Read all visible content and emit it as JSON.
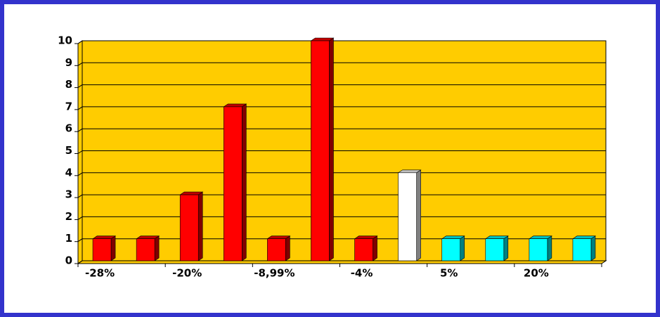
{
  "chart_data": {
    "type": "bar",
    "categories": [
      "-28%",
      null,
      "-20%",
      null,
      "-8,99%",
      null,
      "-4%",
      null,
      "5%",
      null,
      "20%",
      null
    ],
    "values": [
      1,
      1,
      3,
      7,
      1,
      10,
      1,
      4,
      1,
      1,
      1,
      1
    ],
    "colors": [
      "#ff0000",
      "#ff0000",
      "#ff0000",
      "#ff0000",
      "#ff0000",
      "#ff0000",
      "#ff0000",
      "#ffffff",
      "#00ffff",
      "#00ffff",
      "#00ffff",
      "#00ffff"
    ],
    "background": "#ffcc00",
    "ylim": [
      0,
      10
    ],
    "yticks": [
      0,
      1,
      2,
      3,
      4,
      5,
      6,
      7,
      8,
      9,
      10
    ],
    "grid": true
  }
}
